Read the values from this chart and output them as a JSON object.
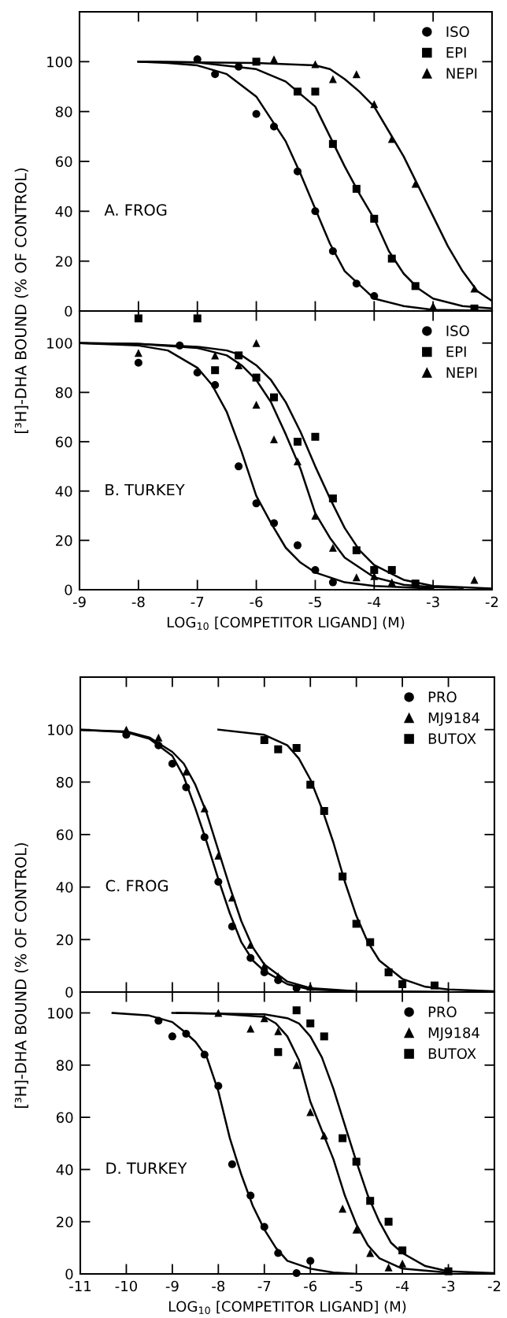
{
  "chart_data": [
    {
      "type": "scatter",
      "ylabel": "[³H]-DHA BOUND (% OF CONTROL)",
      "annotations": [
        "A. FROG"
      ],
      "xlim": [
        -9,
        -2
      ],
      "xticks": [
        -9,
        -8,
        -7,
        -6,
        -5,
        -4,
        -3,
        -2
      ],
      "ylim": [
        0,
        120
      ],
      "yticks": [
        0,
        20,
        40,
        60,
        80,
        100
      ],
      "tick_labels": "y",
      "legend": "top right",
      "series": [
        {
          "name": "ISO",
          "marker": "circle",
          "color": "#000000",
          "x": [
            -7,
            -6.7,
            -6.3,
            -6,
            -5.7,
            -5.3,
            -5,
            -4.7,
            -4.3,
            -4
          ],
          "values": [
            101,
            95,
            98,
            79,
            74,
            56,
            40,
            24,
            11,
            6
          ]
        },
        {
          "name": "EPI",
          "marker": "square",
          "color": "#000000",
          "x": [
            -6,
            -5.3,
            -5,
            -4.7,
            -4.3,
            -4,
            -3.7,
            -3.3,
            -2.3
          ],
          "values": [
            100,
            88,
            88,
            67,
            49,
            37,
            21,
            10,
            1
          ]
        },
        {
          "name": "NEPI",
          "marker": "triangle",
          "color": "#000000",
          "x": [
            -5.7,
            -5,
            -4.7,
            -4.3,
            -4,
            -3.7,
            -3.3,
            -3,
            -2.3
          ],
          "values": [
            101,
            99,
            93,
            95,
            83,
            69,
            51,
            2,
            9
          ]
        },
        {
          "type": "line",
          "color": "#000000",
          "x": [
            -8,
            -7.5,
            -7,
            -6.5,
            -6,
            -5.5,
            -5.25,
            -5,
            -4.75,
            -4.5,
            -4,
            -3.5,
            -3,
            -2
          ],
          "values": [
            100,
            99.5,
            98.5,
            95,
            86,
            68,
            55,
            41,
            27,
            16,
            5,
            2,
            0.5,
            0.1
          ]
        },
        {
          "type": "line",
          "color": "#000000",
          "x": [
            -8,
            -7,
            -6,
            -5.5,
            -5,
            -4.75,
            -4.5,
            -4.25,
            -4,
            -3.75,
            -3.5,
            -3.25,
            -3,
            -2.5,
            -2
          ],
          "values": [
            100,
            99.7,
            97,
            92,
            82,
            70,
            58,
            47,
            37,
            24,
            15,
            9,
            5,
            2,
            1
          ]
        },
        {
          "type": "line",
          "color": "#000000",
          "x": [
            -8,
            -6,
            -5,
            -4.75,
            -4.5,
            -4.25,
            -4,
            -3.75,
            -3.5,
            -3.25,
            -3,
            -2.75,
            -2.5,
            -2.25,
            -2
          ],
          "values": [
            100,
            99.5,
            98.5,
            97,
            93,
            88,
            82,
            72,
            62,
            50,
            38,
            26,
            16,
            8,
            4
          ]
        }
      ]
    },
    {
      "type": "scatter",
      "xlabel": "LOG$_{10}$ [COMPETITOR LIGAND] (M)",
      "annotations": [
        "B. TURKEY"
      ],
      "xlim": [
        -9,
        -2
      ],
      "xticks": [
        -9,
        -8,
        -7,
        -6,
        -5,
        -4,
        -3,
        -2
      ],
      "ylim": [
        0,
        113
      ],
      "yticks": [
        0,
        20,
        40,
        60,
        80,
        100
      ],
      "legend": "top right",
      "series": [
        {
          "name": "ISO",
          "marker": "circle",
          "color": "#000000",
          "x": [
            -8,
            -7.3,
            -7,
            -6.7,
            -6.3,
            -6,
            -5.7,
            -5.3,
            -5,
            -4.7
          ],
          "values": [
            92,
            99,
            88,
            83,
            50,
            35,
            27,
            18,
            8,
            3
          ]
        },
        {
          "name": "EPI",
          "marker": "square",
          "color": "#000000",
          "x": [
            -8,
            -7,
            -6.7,
            -6.3,
            -6,
            -5.7,
            -5.3,
            -5,
            -4.7,
            -4.3,
            -4,
            -3.7,
            -3.3
          ],
          "values": [
            110,
            110,
            89,
            95,
            86,
            78,
            60,
            62,
            37,
            16,
            8,
            8,
            2.5
          ]
        },
        {
          "name": "NEPI",
          "marker": "triangle",
          "color": "#000000",
          "x": [
            -8,
            -6.7,
            -6.3,
            -6,
            -6,
            -5.7,
            -5.3,
            -5,
            -4.7,
            -4.3,
            -4,
            -3.7,
            -2.3
          ],
          "values": [
            96,
            95,
            91,
            100,
            75,
            61,
            52,
            30,
            17,
            5,
            5.5,
            3,
            4
          ]
        },
        {
          "type": "line",
          "color": "#000000",
          "x": [
            -9,
            -8,
            -7.5,
            -7,
            -6.75,
            -6.5,
            -6.25,
            -6,
            -5.75,
            -5.5,
            -5.25,
            -5,
            -4.5,
            -4,
            -3
          ],
          "values": [
            100,
            99,
            97,
            90,
            83,
            72,
            56,
            38,
            27,
            17,
            11,
            7,
            3,
            1.5,
            0.5
          ]
        },
        {
          "type": "line",
          "color": "#000000",
          "x": [
            -9,
            -8,
            -7,
            -6.5,
            -6.25,
            -6,
            -5.75,
            -5.5,
            -5.25,
            -5,
            -4.75,
            -4.5,
            -4,
            -3.5,
            -3,
            -2.5
          ],
          "values": [
            100,
            99.7,
            98,
            95,
            91,
            85,
            76,
            63,
            49,
            31,
            21,
            13,
            5,
            2,
            1,
            0.7
          ]
        },
        {
          "type": "line",
          "color": "#000000",
          "x": [
            -9,
            -8,
            -7,
            -6.5,
            -6.25,
            -6,
            -5.75,
            -5.5,
            -5.25,
            -5,
            -4.75,
            -4.5,
            -4.25,
            -4,
            -3.5,
            -3,
            -2
          ],
          "values": [
            100,
            99.7,
            98.5,
            97,
            95,
            91,
            85,
            76,
            64,
            50,
            37,
            25,
            16,
            10,
            4,
            1.5,
            0.5
          ]
        }
      ]
    },
    {
      "type": "scatter",
      "ylabel": "[³H]-DHA BOUND (% OF CONTROL)",
      "annotations": [
        "C. FROG"
      ],
      "xlim": [
        -11,
        -2
      ],
      "xticks": [
        -11,
        -10,
        -9,
        -8,
        -7,
        -6,
        -5,
        -4,
        -3,
        -2
      ],
      "ylim": [
        0,
        120
      ],
      "yticks": [
        0,
        20,
        40,
        60,
        80,
        100
      ],
      "tick_labels": "y",
      "legend": "top right",
      "series": [
        {
          "name": "PRO",
          "marker": "circle",
          "color": "#000000",
          "x": [
            -10,
            -9.3,
            -9,
            -8.7,
            -8.3,
            -8,
            -7.7,
            -7.3,
            -7,
            -6.7,
            -6.3
          ],
          "values": [
            98,
            94,
            87,
            78,
            59,
            42,
            25,
            13,
            7.5,
            4.5,
            1.5
          ]
        },
        {
          "name": "MJ9184",
          "marker": "triangle",
          "color": "#000000",
          "x": [
            -10,
            -9.3,
            -8.7,
            -8.3,
            -8,
            -7.7,
            -7.3,
            -7,
            -6.7,
            -6
          ],
          "values": [
            100,
            97,
            84,
            70,
            52,
            36,
            18,
            10,
            6,
            2
          ]
        },
        {
          "name": "BUTOX",
          "marker": "square",
          "color": "#000000",
          "x": [
            -7,
            -6.7,
            -6.3,
            -6,
            -5.7,
            -5.3,
            -5,
            -4.7,
            -4.3,
            -4,
            -3.3
          ],
          "values": [
            96,
            92.5,
            93,
            79,
            69,
            44,
            26,
            19,
            7.5,
            3,
            2.5
          ]
        },
        {
          "type": "line",
          "color": "#000000",
          "x": [
            -11,
            -10,
            -9.5,
            -9,
            -8.75,
            -8.5,
            -8.25,
            -8,
            -7.75,
            -7.5,
            -7.25,
            -7,
            -6.5,
            -6,
            -5,
            -3
          ],
          "values": [
            100,
            99,
            96.5,
            90,
            82,
            70,
            57,
            43,
            30,
            19,
            12,
            8,
            3,
            1,
            0.3,
            0.1
          ]
        },
        {
          "type": "line",
          "color": "#000000",
          "x": [
            -11,
            -10,
            -9.5,
            -9,
            -8.75,
            -8.5,
            -8.25,
            -8,
            -7.75,
            -7.5,
            -7.25,
            -7,
            -6.5,
            -6,
            -5,
            -3.5
          ],
          "values": [
            99.8,
            99.3,
            97,
            91.5,
            87,
            79,
            68,
            54,
            40,
            27,
            17,
            10.5,
            4,
            1.5,
            0.3,
            0
          ]
        },
        {
          "type": "line",
          "color": "#000000",
          "x": [
            -8,
            -7,
            -6.5,
            -6.25,
            -6,
            -5.75,
            -5.5,
            -5.25,
            -5,
            -4.75,
            -4.5,
            -4,
            -3.5,
            -3,
            -2
          ],
          "values": [
            100,
            98,
            94,
            89,
            81,
            70,
            57,
            42,
            29,
            19,
            12,
            5,
            2,
            1,
            0.3
          ]
        }
      ]
    },
    {
      "type": "scatter",
      "xlabel": "LOG$_{10}$ [COMPETITOR LIGAND] (M)",
      "annotations": [
        "D. TURKEY"
      ],
      "xlim": [
        -11,
        -2
      ],
      "xticks": [
        -11,
        -10,
        -9,
        -8,
        -7,
        -6,
        -5,
        -4,
        -3,
        -2
      ],
      "ylim": [
        0,
        108
      ],
      "yticks": [
        0,
        20,
        40,
        60,
        80,
        100
      ],
      "legend": "top right",
      "series": [
        {
          "name": "PRO",
          "marker": "circle",
          "color": "#000000",
          "x": [
            -9.3,
            -9,
            -8.7,
            -8.3,
            -8,
            -7.7,
            -7.3,
            -7,
            -6.7,
            -6.3,
            -6
          ],
          "values": [
            97,
            91,
            92,
            84,
            72,
            42,
            30,
            18,
            8,
            0.3,
            5
          ]
        },
        {
          "name": "MJ9184",
          "marker": "triangle",
          "color": "#000000",
          "x": [
            -8,
            -7.3,
            -7,
            -6.7,
            -6.3,
            -6,
            -5.7,
            -5.3,
            -5,
            -4.7,
            -4.3,
            -4
          ],
          "values": [
            100,
            94,
            98,
            93,
            80,
            62,
            53,
            25,
            17,
            8,
            2.5,
            4
          ]
        },
        {
          "name": "BUTOX",
          "marker": "square",
          "color": "#000000",
          "x": [
            -6.7,
            -6.3,
            -6,
            -5.7,
            -5.3,
            -5,
            -4.7,
            -4.3,
            -4,
            -3
          ],
          "values": [
            85,
            101,
            96,
            91,
            52,
            43,
            28,
            20,
            9,
            1
          ]
        },
        {
          "type": "line",
          "color": "#000000",
          "x": [
            -10.3,
            -9.5,
            -9,
            -8.75,
            -8.5,
            -8.25,
            -8,
            -7.75,
            -7.5,
            -7.25,
            -7,
            -6.75,
            -6.5,
            -6,
            -5.5,
            -5
          ],
          "values": [
            100,
            99,
            96.5,
            93,
            89,
            83,
            70,
            52,
            38,
            26,
            17,
            10,
            5,
            2,
            0.5,
            0
          ]
        },
        {
          "type": "line",
          "color": "#000000",
          "x": [
            -8.9,
            -8,
            -7,
            -6.75,
            -6.5,
            -6.25,
            -6,
            -5.75,
            -5.5,
            -5.25,
            -5,
            -4.75,
            -4.5,
            -4,
            -3
          ],
          "values": [
            100,
            99.7,
            98.5,
            96,
            91,
            82,
            66,
            55,
            44,
            30,
            19,
            11,
            6,
            2,
            0.5
          ]
        },
        {
          "type": "line",
          "color": "#000000",
          "x": [
            -9,
            -7,
            -6.5,
            -6.25,
            -6,
            -5.75,
            -5.5,
            -5.25,
            -5,
            -4.75,
            -4.5,
            -4.25,
            -4,
            -3.5,
            -3,
            -2
          ],
          "values": [
            100,
            99.5,
            98,
            96,
            91,
            83,
            71,
            57,
            43,
            30,
            20,
            12,
            8,
            3,
            1,
            0.3
          ]
        }
      ]
    }
  ]
}
